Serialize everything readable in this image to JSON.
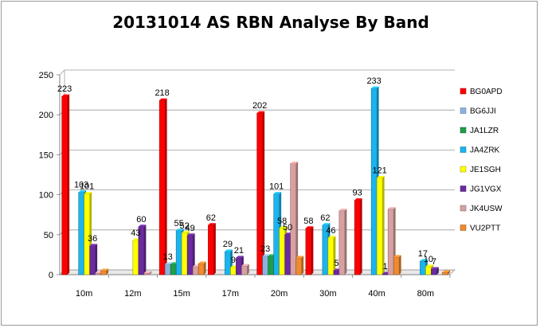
{
  "chart_data": {
    "type": "bar",
    "title": "20131014  AS RBN Analyse By Band",
    "categories": [
      "10m",
      "12m",
      "15m",
      "17m",
      "20m",
      "30m",
      "40m",
      "80m"
    ],
    "ylim": [
      0,
      250
    ],
    "yticks": [
      0,
      50,
      100,
      150,
      200,
      250
    ],
    "grid": true,
    "legend_position": "right",
    "series": [
      {
        "name": "BG0APD",
        "color": "#ff0000",
        "values": [
          223,
          0,
          218,
          62,
          202,
          58,
          93,
          0
        ]
      },
      {
        "name": "BG6JJI",
        "color": "#8ab4e0",
        "values": [
          0,
          0,
          13,
          0,
          23,
          0,
          0,
          0
        ]
      },
      {
        "name": "JA1LZR",
        "color": "#1e9e4a",
        "values": [
          0,
          0,
          13,
          0,
          23,
          0,
          0,
          0
        ]
      },
      {
        "name": "JA4ZRK",
        "color": "#1ab4ee",
        "values": [
          103,
          0,
          55,
          29,
          101,
          62,
          233,
          17
        ]
      },
      {
        "name": "JE1SGH",
        "color": "#ffff00",
        "values": [
          101,
          43,
          52,
          9,
          58,
          46,
          121,
          10
        ]
      },
      {
        "name": "JG1VGX",
        "color": "#6a2aa0",
        "values": [
          36,
          60,
          49,
          21,
          50,
          5,
          1,
          7
        ]
      },
      {
        "name": "JK4USW",
        "color": "#d8a0a0",
        "values": [
          2,
          2,
          10,
          11,
          139,
          80,
          82,
          0
        ]
      },
      {
        "name": "VU2PTT",
        "color": "#f08a30",
        "values": [
          5,
          0,
          14,
          0,
          21,
          0,
          22,
          3
        ]
      }
    ],
    "data_labels": [
      {
        "category": "10m",
        "series": "BG0APD",
        "text": "223"
      },
      {
        "category": "10m",
        "series": "JA4ZRK",
        "text": "103"
      },
      {
        "category": "10m",
        "series": "JE1SGH",
        "text": "101"
      },
      {
        "category": "10m",
        "series": "JG1VGX",
        "text": "36"
      },
      {
        "category": "12m",
        "series": "JE1SGH",
        "text": "43"
      },
      {
        "category": "12m",
        "series": "JG1VGX",
        "text": "60"
      },
      {
        "category": "15m",
        "series": "BG0APD",
        "text": "218"
      },
      {
        "category": "15m",
        "series": "BG6JJI",
        "text": "13"
      },
      {
        "category": "15m",
        "series": "JA4ZRK",
        "text": "55"
      },
      {
        "category": "15m",
        "series": "JE1SGH",
        "text": "52"
      },
      {
        "category": "15m",
        "series": "JG1VGX",
        "text": "49"
      },
      {
        "category": "17m",
        "series": "BG0APD",
        "text": "62"
      },
      {
        "category": "17m",
        "series": "JA4ZRK",
        "text": "29"
      },
      {
        "category": "17m",
        "series": "JE1SGH",
        "text": "9"
      },
      {
        "category": "17m",
        "series": "JG1VGX",
        "text": "21"
      },
      {
        "category": "20m",
        "series": "BG0APD",
        "text": "202"
      },
      {
        "category": "20m",
        "series": "BG6JJI",
        "text": "23"
      },
      {
        "category": "20m",
        "series": "JA4ZRK",
        "text": "101"
      },
      {
        "category": "20m",
        "series": "JE1SGH",
        "text": "58"
      },
      {
        "category": "20m",
        "series": "JG1VGX",
        "text": "50"
      },
      {
        "category": "30m",
        "series": "BG0APD",
        "text": "58"
      },
      {
        "category": "30m",
        "series": "JA4ZRK",
        "text": "62"
      },
      {
        "category": "30m",
        "series": "JE1SGH",
        "text": "46"
      },
      {
        "category": "30m",
        "series": "JG1VGX",
        "text": "5"
      },
      {
        "category": "40m",
        "series": "BG0APD",
        "text": "93"
      },
      {
        "category": "40m",
        "series": "JA4ZRK",
        "text": "233"
      },
      {
        "category": "40m",
        "series": "JE1SGH",
        "text": "121"
      },
      {
        "category": "40m",
        "series": "JG1VGX",
        "text": "1"
      },
      {
        "category": "80m",
        "series": "JA4ZRK",
        "text": "17"
      },
      {
        "category": "80m",
        "series": "JE1SGH",
        "text": "10"
      },
      {
        "category": "80m",
        "series": "JG1VGX",
        "text": "7"
      }
    ]
  }
}
